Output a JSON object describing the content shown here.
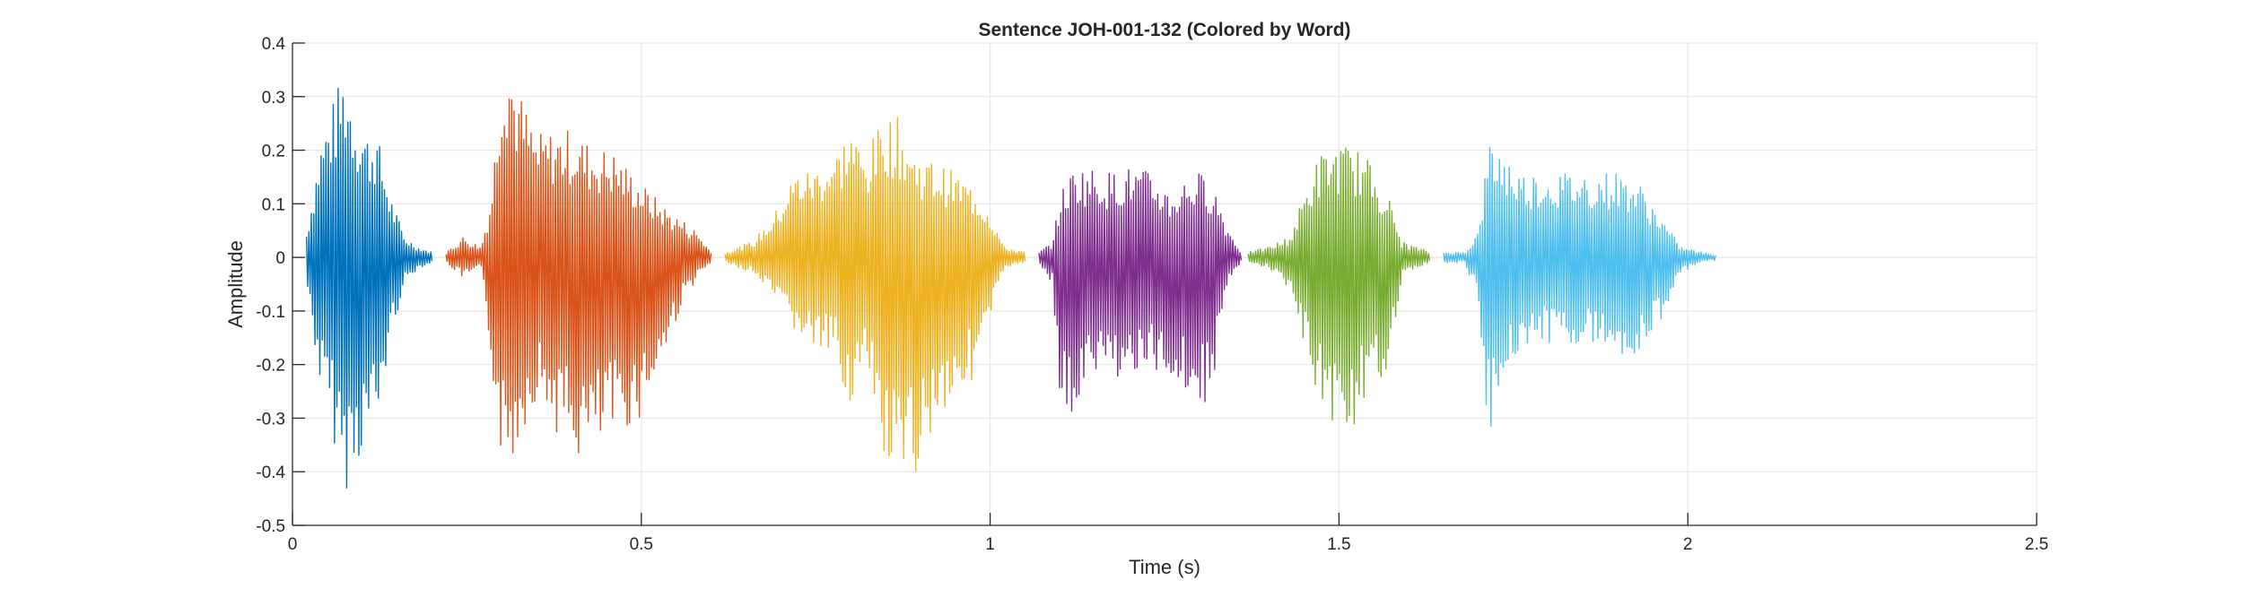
{
  "chart_data": {
    "type": "line",
    "title": "Sentence JOH-001-132 (Colored by Word)",
    "xlabel": "Time (s)",
    "ylabel": "Amplitude",
    "xlim": [
      0,
      2.5
    ],
    "ylim": [
      -0.5,
      0.4
    ],
    "x_ticks": [
      0,
      0.5,
      1,
      1.5,
      2,
      2.5
    ],
    "x_tick_labels": [
      "0",
      "0.5",
      "1",
      "1.5",
      "2",
      "2.5"
    ],
    "y_ticks": [
      -0.5,
      -0.4,
      -0.3,
      -0.2,
      -0.1,
      0,
      0.1,
      0.2,
      0.3,
      0.4
    ],
    "y_tick_labels": [
      "-0.5",
      "-0.4",
      "-0.3",
      "-0.2",
      "-0.1",
      "0",
      "0.1",
      "0.2",
      "0.3",
      "0.4"
    ],
    "grid": true,
    "series": [
      {
        "color": "#0072BD",
        "x": [
          0.02,
          0.04,
          0.06,
          0.075,
          0.09,
          0.11,
          0.12,
          0.14,
          0.16,
          0.18,
          0.2
        ],
        "y_max": [
          0.05,
          0.22,
          0.3,
          0.36,
          0.28,
          0.23,
          0.24,
          0.12,
          0.04,
          0.02,
          0.01
        ],
        "y_min": [
          -0.05,
          -0.25,
          -0.35,
          -0.44,
          -0.4,
          -0.33,
          -0.34,
          -0.16,
          -0.05,
          -0.02,
          -0.01
        ]
      },
      {
        "color": "#D95319",
        "x": [
          0.22,
          0.245,
          0.27,
          0.285,
          0.3,
          0.31,
          0.32,
          0.35,
          0.38,
          0.4,
          0.43,
          0.46,
          0.5,
          0.53,
          0.56,
          0.58,
          0.6
        ],
        "y_max": [
          0.01,
          0.04,
          0.02,
          0.12,
          0.38,
          0.4,
          0.33,
          0.23,
          0.24,
          0.24,
          0.21,
          0.2,
          0.14,
          0.1,
          0.07,
          0.05,
          0.01
        ],
        "y_min": [
          -0.01,
          -0.04,
          -0.02,
          -0.2,
          -0.39,
          -0.41,
          -0.36,
          -0.26,
          -0.33,
          -0.38,
          -0.38,
          -0.34,
          -0.3,
          -0.2,
          -0.08,
          -0.04,
          -0.01
        ]
      },
      {
        "color": "#EDB120",
        "x": [
          0.62,
          0.66,
          0.69,
          0.72,
          0.75,
          0.78,
          0.8,
          0.82,
          0.85,
          0.87,
          0.89,
          0.92,
          0.95,
          0.98,
          1.0,
          1.02,
          1.05
        ],
        "y_max": [
          0.01,
          0.03,
          0.08,
          0.16,
          0.17,
          0.2,
          0.25,
          0.19,
          0.27,
          0.26,
          0.2,
          0.18,
          0.16,
          0.13,
          0.09,
          0.02,
          0.01
        ],
        "y_min": [
          -0.01,
          -0.03,
          -0.08,
          -0.14,
          -0.18,
          -0.2,
          -0.28,
          -0.22,
          -0.4,
          -0.47,
          -0.42,
          -0.31,
          -0.26,
          -0.22,
          -0.12,
          -0.02,
          -0.01
        ]
      },
      {
        "color": "#7E2F8E",
        "x": [
          1.07,
          1.09,
          1.1,
          1.12,
          1.14,
          1.17,
          1.2,
          1.23,
          1.26,
          1.28,
          1.3,
          1.32,
          1.34,
          1.36
        ],
        "y_max": [
          0.01,
          0.03,
          0.12,
          0.17,
          0.17,
          0.16,
          0.17,
          0.16,
          0.12,
          0.15,
          0.16,
          0.14,
          0.06,
          0.01
        ],
        "y_min": [
          -0.01,
          -0.05,
          -0.28,
          -0.32,
          -0.24,
          -0.22,
          -0.23,
          -0.22,
          -0.23,
          -0.25,
          -0.3,
          -0.23,
          -0.05,
          -0.01
        ]
      },
      {
        "color": "#77AC30",
        "x": [
          1.37,
          1.4,
          1.43,
          1.45,
          1.47,
          1.49,
          1.51,
          1.53,
          1.55,
          1.57,
          1.59,
          1.61,
          1.63
        ],
        "y_max": [
          0.01,
          0.02,
          0.04,
          0.12,
          0.19,
          0.21,
          0.21,
          0.2,
          0.17,
          0.12,
          0.03,
          0.02,
          0.01
        ],
        "y_min": [
          -0.01,
          -0.02,
          -0.06,
          -0.17,
          -0.26,
          -0.32,
          -0.33,
          -0.3,
          -0.27,
          -0.2,
          -0.04,
          -0.02,
          -0.01
        ]
      },
      {
        "color": "#4DBEEE",
        "x": [
          1.65,
          1.68,
          1.7,
          1.715,
          1.73,
          1.76,
          1.8,
          1.85,
          1.9,
          1.93,
          1.96,
          1.99,
          2.02,
          2.04
        ],
        "y_max": [
          0.01,
          0.01,
          0.05,
          0.22,
          0.21,
          0.16,
          0.16,
          0.16,
          0.16,
          0.14,
          0.08,
          0.02,
          0.01,
          0.005
        ],
        "y_min": [
          -0.01,
          -0.01,
          -0.08,
          -0.35,
          -0.24,
          -0.17,
          -0.16,
          -0.16,
          -0.18,
          -0.19,
          -0.12,
          -0.03,
          -0.01,
          -0.005
        ]
      }
    ]
  }
}
